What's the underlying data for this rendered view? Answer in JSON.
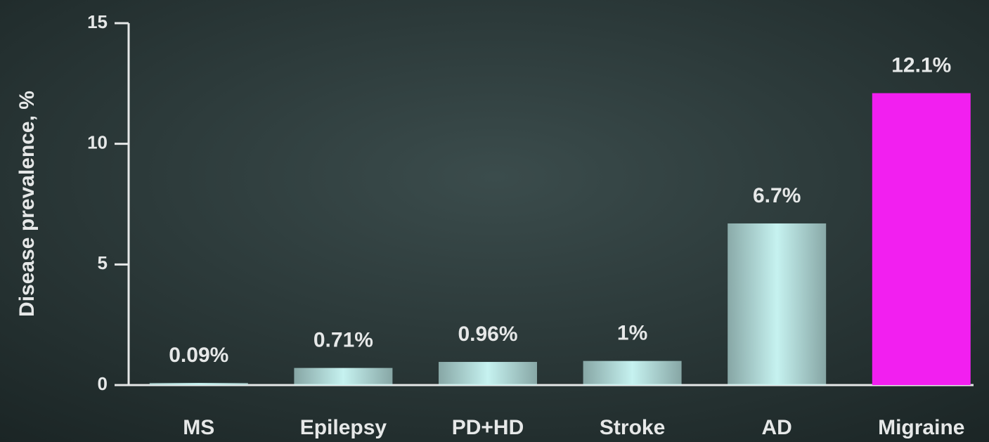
{
  "chart_data": {
    "type": "bar",
    "y_label": "Disease prevalence, %",
    "categories": [
      "MS",
      "Epilepsy",
      "PD+HD",
      "Stroke",
      "AD",
      "Migraine"
    ],
    "values": [
      0.09,
      0.71,
      0.96,
      1,
      6.7,
      12.1
    ],
    "value_labels": [
      "0.09%",
      "0.71%",
      "0.96%",
      "1%",
      "6.7%",
      "12.1%"
    ],
    "colors": [
      "#c6f2f0",
      "#c6f2f0",
      "#c6f2f0",
      "#c6f2f0",
      "#c6f2f0",
      "#f21ff0"
    ],
    "ylim": [
      0,
      15
    ],
    "yticks": [
      0,
      5,
      10,
      15
    ]
  }
}
